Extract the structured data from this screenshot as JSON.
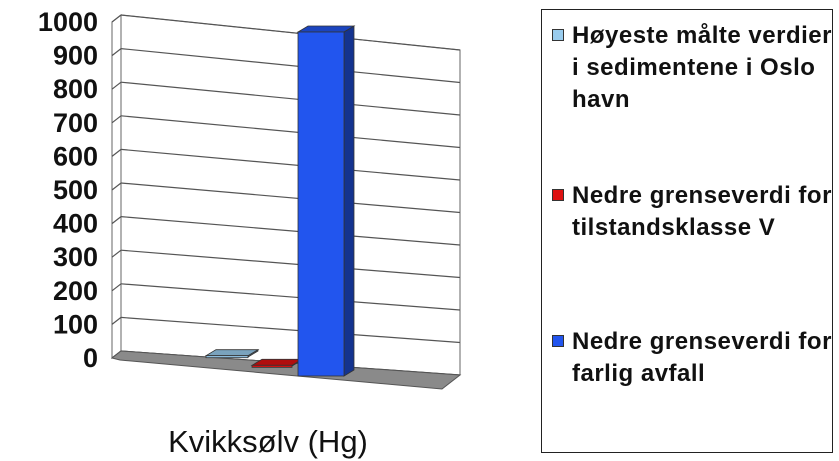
{
  "chart_data": {
    "type": "bar",
    "categories": [
      "Kvikksølv (Hg)"
    ],
    "xlabel": "Kvikksølv (Hg)",
    "ylim": [
      0,
      1000
    ],
    "yticks": [
      "0",
      "100",
      "200",
      "300",
      "400",
      "500",
      "600",
      "700",
      "800",
      "900",
      "1000"
    ],
    "grid": true,
    "legend_position": "right",
    "series": [
      {
        "name": "Høyeste målte verdier i sedimentene i Oslo havn",
        "values": [
          4
        ],
        "color": "#99ccee"
      },
      {
        "name": "Nedre grenseverdi for tilstandsklasse V",
        "values": [
          2
        ],
        "color": "#dd1111"
      },
      {
        "name": "Nedre grenseverdi for farlig avfall",
        "values": [
          1000
        ],
        "color": "#2255ee"
      }
    ]
  },
  "legend": {
    "items": [
      {
        "label": "Høyeste målte verdier i sedimentene i Oslo havn",
        "color": "#99ccee"
      },
      {
        "label": "Nedre grenseverdi for tilstandsklasse V",
        "color": "#dd1111"
      },
      {
        "label": "Nedre grenseverdi for farlig avfall",
        "color": "#2255ee"
      }
    ]
  }
}
